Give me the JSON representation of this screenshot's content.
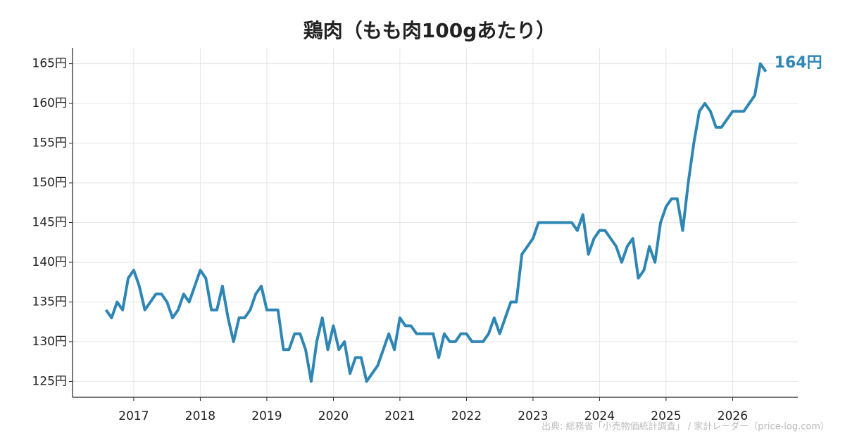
{
  "chart_data": {
    "type": "line",
    "title": "鶏肉（もも肉100gあたり）",
    "source": "出典: 総務省「小売物価統計調査」 / 家計レーダー（price-log.com）",
    "x": [
      2016.583,
      2016.667,
      2016.75,
      2016.833,
      2016.917,
      2017,
      2017.083,
      2017.167,
      2017.25,
      2017.333,
      2017.417,
      2017.5,
      2017.583,
      2017.667,
      2017.75,
      2017.833,
      2017.917,
      2018,
      2018.083,
      2018.167,
      2018.25,
      2018.333,
      2018.417,
      2018.5,
      2018.583,
      2018.667,
      2018.75,
      2018.833,
      2018.917,
      2019,
      2019.083,
      2019.167,
      2019.25,
      2019.333,
      2019.417,
      2019.5,
      2019.583,
      2019.667,
      2019.75,
      2019.833,
      2019.917,
      2020,
      2020.083,
      2020.167,
      2020.25,
      2020.333,
      2020.417,
      2020.5,
      2020.583,
      2020.667,
      2020.75,
      2020.833,
      2020.917,
      2021,
      2021.083,
      2021.167,
      2021.25,
      2021.333,
      2021.417,
      2021.5,
      2021.583,
      2021.667,
      2021.75,
      2021.833,
      2021.917,
      2022,
      2022.083,
      2022.167,
      2022.25,
      2022.333,
      2022.417,
      2022.5,
      2022.583,
      2022.667,
      2022.75,
      2022.833,
      2022.917,
      2023,
      2023.083,
      2023.167,
      2023.25,
      2023.333,
      2023.417,
      2023.5,
      2023.583,
      2023.667,
      2023.75,
      2023.833,
      2023.917,
      2024,
      2024.083,
      2024.167,
      2024.25,
      2024.333,
      2024.417,
      2024.5,
      2024.583,
      2024.667,
      2024.75,
      2024.833,
      2024.917,
      2025,
      2025.083,
      2025.167,
      2025.25,
      2025.333,
      2025.417,
      2025.5,
      2025.583,
      2025.667,
      2025.75,
      2025.833,
      2025.917,
      2026,
      2026.083,
      2026.167,
      2026.25,
      2026.333,
      2026.417,
      2026.5
    ],
    "series": [
      {
        "color": "#2e86b5",
        "end_label": "164円",
        "values": [
          134,
          133,
          135,
          134,
          138,
          139,
          137,
          134,
          135,
          136,
          136,
          135,
          133,
          134,
          136,
          135,
          137,
          139,
          138,
          134,
          134,
          137,
          133,
          130,
          133,
          133,
          134,
          136,
          137,
          134,
          134,
          134,
          129,
          129,
          131,
          131,
          129,
          125,
          130,
          133,
          129,
          132,
          129,
          130,
          126,
          128,
          128,
          125,
          126,
          127,
          129,
          131,
          129,
          133,
          132,
          132,
          131,
          131,
          131,
          131,
          128,
          131,
          130,
          130,
          131,
          131,
          130,
          130,
          130,
          131,
          133,
          131,
          133,
          135,
          135,
          141,
          142,
          143,
          145,
          145,
          145,
          145,
          145,
          145,
          145,
          144,
          146,
          141,
          143,
          144,
          144,
          143,
          142,
          140,
          142,
          143,
          138,
          139,
          142,
          140,
          145,
          147,
          148,
          148,
          144,
          150,
          155,
          159,
          160,
          159,
          157,
          157,
          158,
          159,
          159,
          159,
          160,
          161,
          165,
          164
        ]
      }
    ],
    "xlim": [
      2016.08,
      2026.98
    ],
    "xticks": [
      2017,
      2018,
      2019,
      2020,
      2021,
      2022,
      2023,
      2024,
      2025,
      2026
    ],
    "ylim": [
      123,
      167
    ],
    "yticks": [
      {
        "value": 125,
        "label": "125円"
      },
      {
        "value": 130,
        "label": "130円"
      },
      {
        "value": 135,
        "label": "135円"
      },
      {
        "value": 140,
        "label": "140円"
      },
      {
        "value": 145,
        "label": "145円"
      },
      {
        "value": 150,
        "label": "150円"
      },
      {
        "value": 155,
        "label": "155円"
      },
      {
        "value": 160,
        "label": "160円"
      },
      {
        "value": 165,
        "label": "165円"
      }
    ],
    "grid": true
  }
}
